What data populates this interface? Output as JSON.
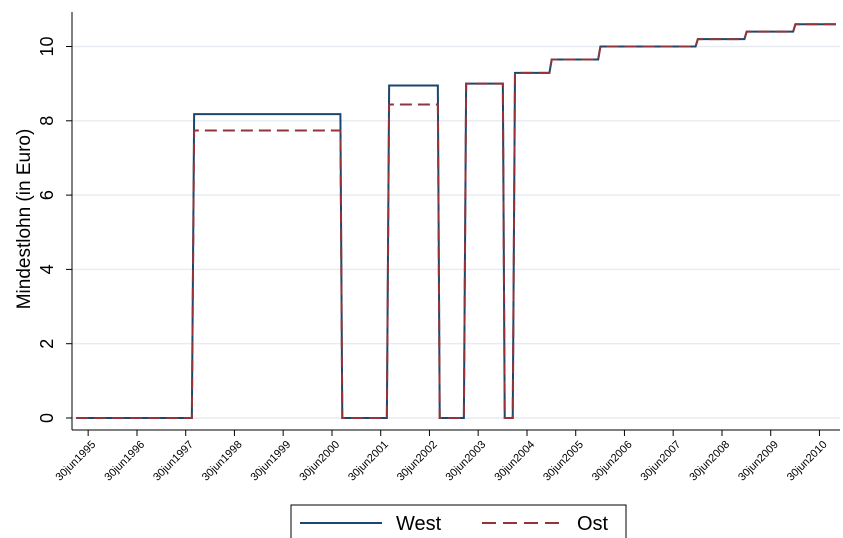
{
  "chart_data": {
    "type": "line",
    "title": "",
    "xlabel": "",
    "ylabel": "Mindestlohn (in Euro)",
    "ylim": [
      0,
      10.6
    ],
    "yticks": [
      0,
      2,
      4,
      6,
      8,
      10
    ],
    "xlim": [
      "1995-03-01",
      "2010-12-01"
    ],
    "xticks": [
      "30jun1995",
      "30jun1996",
      "30jun1997",
      "30jun1998",
      "30jun1999",
      "30jun2000",
      "30jun2001",
      "30jun2002",
      "30jun2003",
      "30jun2004",
      "30jun2005",
      "30jun2006",
      "30jun2007",
      "30jun2008",
      "30jun2009",
      "30jun2010"
    ],
    "grid": true,
    "legend_position": "bottom",
    "colors": {
      "West": "#1a476f",
      "Ost": "#90353b"
    },
    "series": [
      {
        "name": "West",
        "style": "solid",
        "points": [
          [
            "1995-04-01",
            0
          ],
          [
            "1997-08-15",
            0
          ],
          [
            "1997-09-01",
            8.18
          ],
          [
            "2000-09-01",
            8.18
          ],
          [
            "2000-09-15",
            0
          ],
          [
            "2001-08-15",
            0
          ],
          [
            "2001-09-01",
            8.95
          ],
          [
            "2002-09-01",
            8.95
          ],
          [
            "2002-09-15",
            0
          ],
          [
            "2003-03-15",
            0
          ],
          [
            "2003-04-01",
            9.0
          ],
          [
            "2004-01-01",
            9.0
          ],
          [
            "2004-01-15",
            0
          ],
          [
            "2004-03-15",
            0
          ],
          [
            "2004-04-01",
            9.29
          ],
          [
            "2004-12-15",
            9.29
          ],
          [
            "2005-01-01",
            9.65
          ],
          [
            "2005-12-15",
            9.65
          ],
          [
            "2006-01-01",
            10.0
          ],
          [
            "2007-12-15",
            10.0
          ],
          [
            "2008-01-01",
            10.2
          ],
          [
            "2008-12-15",
            10.2
          ],
          [
            "2009-01-01",
            10.4
          ],
          [
            "2009-12-15",
            10.4
          ],
          [
            "2010-01-01",
            10.6
          ],
          [
            "2010-11-01",
            10.6
          ]
        ]
      },
      {
        "name": "Ost",
        "style": "dashed",
        "points": [
          [
            "1995-04-01",
            0
          ],
          [
            "1997-08-15",
            0
          ],
          [
            "1997-09-01",
            7.74
          ],
          [
            "2000-09-01",
            7.74
          ],
          [
            "2000-09-15",
            0
          ],
          [
            "2001-08-15",
            0
          ],
          [
            "2001-09-01",
            8.44
          ],
          [
            "2002-09-01",
            8.44
          ],
          [
            "2002-09-15",
            0
          ],
          [
            "2003-03-15",
            0
          ],
          [
            "2003-04-01",
            9.0
          ],
          [
            "2004-01-01",
            9.0
          ],
          [
            "2004-01-15",
            0
          ],
          [
            "2004-03-15",
            0
          ],
          [
            "2004-04-01",
            9.29
          ],
          [
            "2004-12-15",
            9.29
          ],
          [
            "2005-01-01",
            9.65
          ],
          [
            "2005-12-15",
            9.65
          ],
          [
            "2006-01-01",
            10.0
          ],
          [
            "2007-12-15",
            10.0
          ],
          [
            "2008-01-01",
            10.2
          ],
          [
            "2008-12-15",
            10.2
          ],
          [
            "2009-01-01",
            10.4
          ],
          [
            "2009-12-15",
            10.4
          ],
          [
            "2010-01-01",
            10.6
          ],
          [
            "2010-11-01",
            10.6
          ]
        ]
      }
    ]
  }
}
